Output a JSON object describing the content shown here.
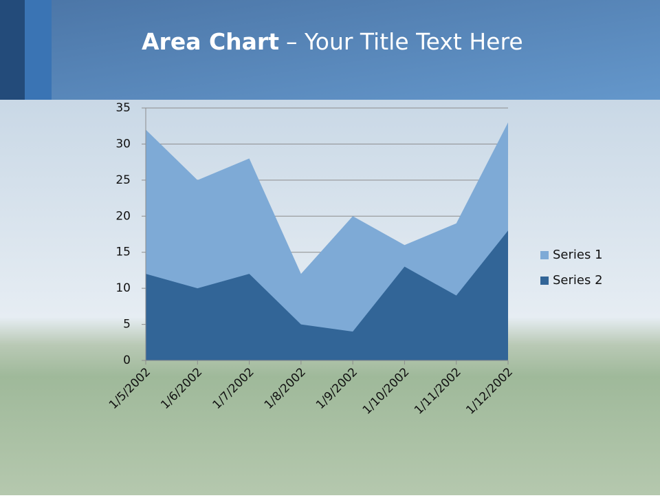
{
  "chart_data": {
    "type": "area",
    "title": "Area Chart",
    "title_rest": "– Your Title Text Here",
    "categories": [
      "1/5/2002",
      "1/6/2002",
      "1/7/2002",
      "1/8/2002",
      "1/9/2002",
      "1/10/2002",
      "1/11/2002",
      "1/12/2002"
    ],
    "series": [
      {
        "name": "Series 1",
        "color": "#7eaad6",
        "values": [
          32,
          25,
          28,
          12,
          20,
          16,
          19,
          33
        ]
      },
      {
        "name": "Series 2",
        "color": "#326597",
        "values": [
          12,
          10,
          12,
          5,
          4,
          13,
          9,
          18
        ]
      }
    ],
    "ylim": [
      0,
      35
    ],
    "yticks": [
      0,
      5,
      10,
      15,
      20,
      25,
      30,
      35
    ],
    "grid": true,
    "legend": "right"
  }
}
